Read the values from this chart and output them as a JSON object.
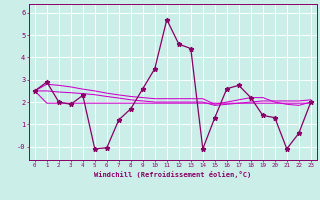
{
  "xlabel": "Windchill (Refroidissement éolien,°C)",
  "background_color": "#cceee8",
  "grid_color": "#ffffff",
  "line_color": "#cc00cc",
  "line_color2": "#880066",
  "x": [
    0,
    1,
    2,
    3,
    4,
    5,
    6,
    7,
    8,
    9,
    10,
    11,
    12,
    13,
    14,
    15,
    16,
    17,
    18,
    19,
    20,
    21,
    22,
    23
  ],
  "y_main": [
    2.5,
    2.9,
    2.0,
    1.9,
    2.3,
    -0.1,
    -0.05,
    1.2,
    1.7,
    2.6,
    3.5,
    5.7,
    4.6,
    4.4,
    -0.1,
    1.3,
    2.6,
    2.75,
    2.2,
    1.4,
    1.3,
    -0.1,
    0.6,
    2.0
  ],
  "y_line1": [
    2.5,
    1.95,
    1.95,
    1.95,
    1.95,
    1.95,
    1.95,
    1.95,
    1.95,
    1.95,
    1.95,
    1.95,
    1.95,
    1.95,
    1.95,
    1.95,
    1.95,
    1.95,
    1.95,
    1.95,
    1.95,
    1.95,
    1.95,
    1.95
  ],
  "y_line2": [
    2.5,
    2.5,
    2.45,
    2.42,
    2.38,
    2.33,
    2.25,
    2.18,
    2.1,
    2.05,
    2.0,
    2.0,
    2.0,
    2.0,
    2.0,
    1.85,
    1.9,
    1.95,
    2.0,
    2.05,
    2.05,
    2.05,
    2.05,
    2.1
  ],
  "y_line3": [
    2.5,
    2.8,
    2.75,
    2.68,
    2.58,
    2.5,
    2.4,
    2.32,
    2.25,
    2.2,
    2.15,
    2.15,
    2.15,
    2.15,
    2.15,
    1.9,
    2.0,
    2.1,
    2.2,
    2.2,
    2.0,
    1.9,
    1.85,
    2.0
  ],
  "ylim": [
    -0.6,
    6.4
  ],
  "xlim_min": -0.5,
  "xlim_max": 23.5,
  "yticks": [
    0,
    1,
    2,
    3,
    4,
    5,
    6
  ],
  "ytick_labels": [
    "-0",
    "1",
    "2",
    "3",
    "4",
    "5",
    "6"
  ],
  "xticks": [
    0,
    1,
    2,
    3,
    4,
    5,
    6,
    7,
    8,
    9,
    10,
    11,
    12,
    13,
    14,
    15,
    16,
    17,
    18,
    19,
    20,
    21,
    22,
    23
  ],
  "marker": "*",
  "marker_size": 3.5,
  "lw_main": 0.9,
  "lw_trend": 0.75
}
